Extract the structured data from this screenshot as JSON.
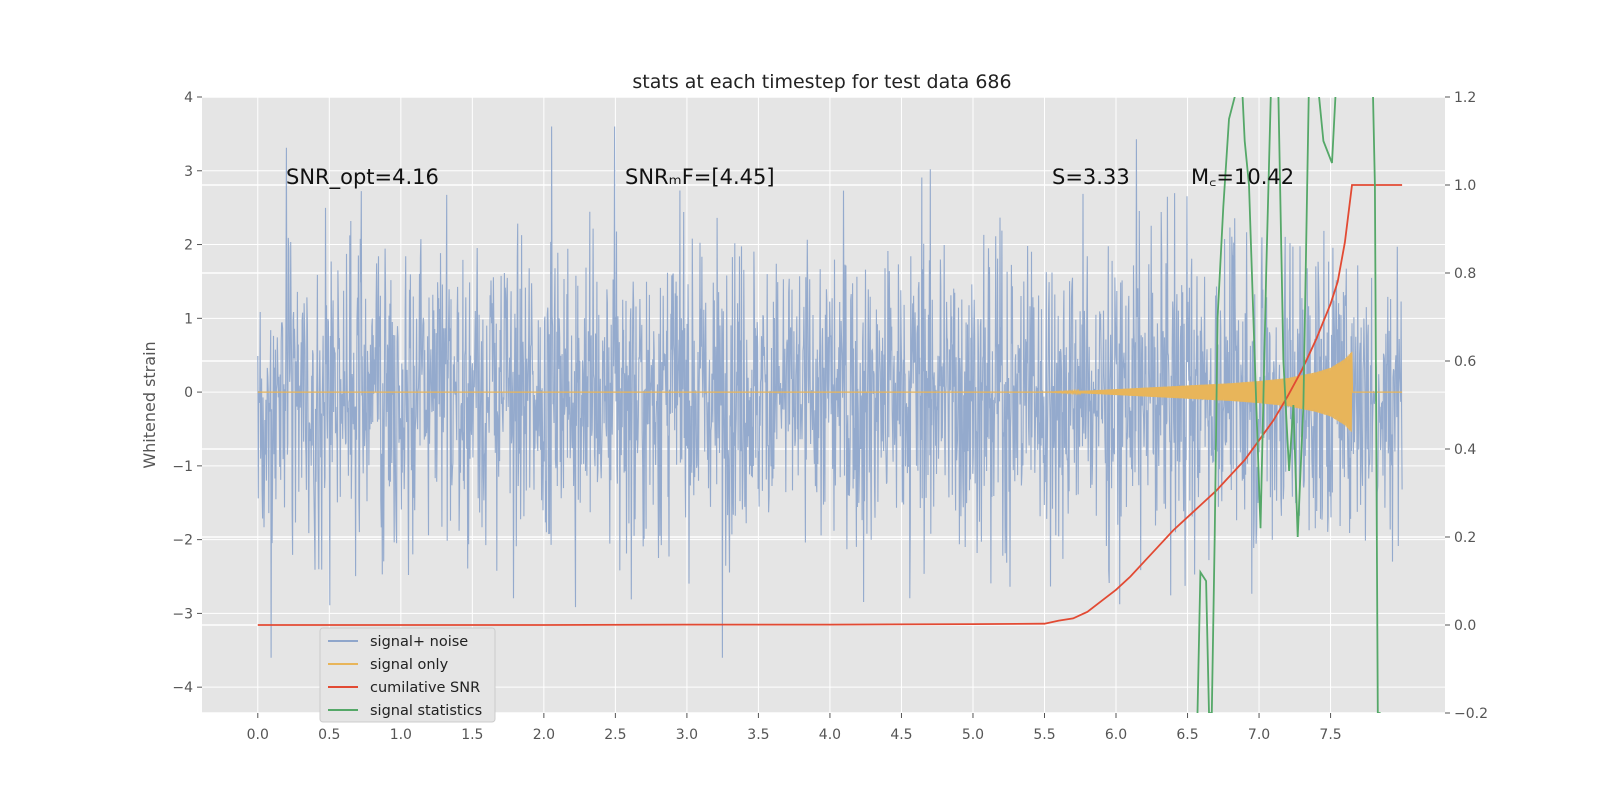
{
  "chart_data": {
    "type": "line",
    "title": "stats at each timestep for test data 686",
    "xlabel": "",
    "ylabel": "Whitened strain",
    "y2label": "",
    "xlim": [
      -0.39,
      8.3
    ],
    "ylim": [
      -4.35,
      4.0
    ],
    "y2lim": [
      -0.2,
      1.2
    ],
    "x_ticks": [
      "0.0",
      "0.5",
      "1.0",
      "1.5",
      "2.0",
      "2.5",
      "3.0",
      "3.5",
      "4.0",
      "4.5",
      "5.0",
      "5.5",
      "6.0",
      "6.5",
      "7.0",
      "7.5"
    ],
    "y_ticks": [
      "4",
      "3",
      "2",
      "1",
      "0",
      "−1",
      "−2",
      "−3",
      "−4"
    ],
    "y2_ticks": [
      "1.2",
      "1.0",
      "0.8",
      "0.6",
      "0.4",
      "0.2",
      "0.0",
      "−0.2"
    ],
    "grid": true,
    "legend_placement": "lower-left",
    "annotations": [
      "SNR_opt=4.16",
      "SNRₘF=[4.45]",
      "S=3.33",
      "M꜀=10.42"
    ],
    "series": [
      {
        "name": "signal+ noise",
        "color": "#8fa6cb",
        "axis": "left",
        "x_range": [
          0.0,
          8.0
        ],
        "typical_envelope": [
          -1.6,
          1.6
        ],
        "extremes": [
          -3.6,
          3.6
        ]
      },
      {
        "name": "signal only",
        "color": "#e8b55a",
        "axis": "left",
        "x": [
          0.0,
          5.5,
          5.8,
          6.0,
          6.2,
          6.4,
          6.6,
          6.8,
          7.0,
          7.2,
          7.4,
          7.5,
          7.6,
          7.65,
          8.0
        ],
        "amplitude": [
          0.0,
          0.0,
          0.02,
          0.04,
          0.06,
          0.08,
          0.1,
          0.12,
          0.15,
          0.19,
          0.27,
          0.33,
          0.45,
          0.55,
          0.0
        ]
      },
      {
        "name": "cumilative SNR",
        "color": "#e24a33",
        "axis": "right",
        "x": [
          0.0,
          1.0,
          2.0,
          3.0,
          4.0,
          5.0,
          5.5,
          5.6,
          5.7,
          5.8,
          5.9,
          6.0,
          6.1,
          6.2,
          6.3,
          6.4,
          6.5,
          6.6,
          6.7,
          6.8,
          6.9,
          7.0,
          7.1,
          7.2,
          7.3,
          7.4,
          7.5,
          7.55,
          7.6,
          7.65,
          7.7,
          8.0
        ],
        "values": [
          0.0,
          0.0,
          0.0,
          0.001,
          0.001,
          0.002,
          0.003,
          0.01,
          0.015,
          0.03,
          0.055,
          0.08,
          0.11,
          0.145,
          0.18,
          0.215,
          0.245,
          0.275,
          0.305,
          0.34,
          0.375,
          0.42,
          0.465,
          0.52,
          0.58,
          0.65,
          0.73,
          0.78,
          0.87,
          1.0,
          1.0,
          1.0
        ]
      },
      {
        "name": "signal statistics",
        "color": "#55a868",
        "axis": "right",
        "x": [
          6.57,
          6.59,
          6.63,
          6.65,
          6.67,
          6.69,
          6.71,
          6.75,
          6.79,
          6.83,
          6.87,
          6.9,
          6.93,
          6.97,
          7.01,
          7.05,
          7.09,
          7.13,
          7.17,
          7.21,
          7.24,
          7.27,
          7.31,
          7.35,
          7.39,
          7.45,
          7.51,
          7.55,
          7.59,
          7.63,
          7.67,
          7.71,
          7.75,
          7.79,
          7.81,
          7.83,
          7.85
        ],
        "values": [
          -0.2,
          0.12,
          0.1,
          -0.2,
          -0.2,
          0.2,
          0.7,
          0.95,
          1.15,
          1.2,
          1.3,
          1.1,
          1.0,
          0.6,
          0.22,
          0.8,
          1.3,
          1.3,
          0.6,
          0.35,
          0.5,
          0.2,
          0.5,
          1.25,
          1.3,
          1.1,
          1.05,
          1.3,
          1.3,
          1.3,
          1.3,
          1.3,
          1.3,
          1.3,
          1.0,
          -0.2,
          -0.2
        ]
      }
    ]
  }
}
